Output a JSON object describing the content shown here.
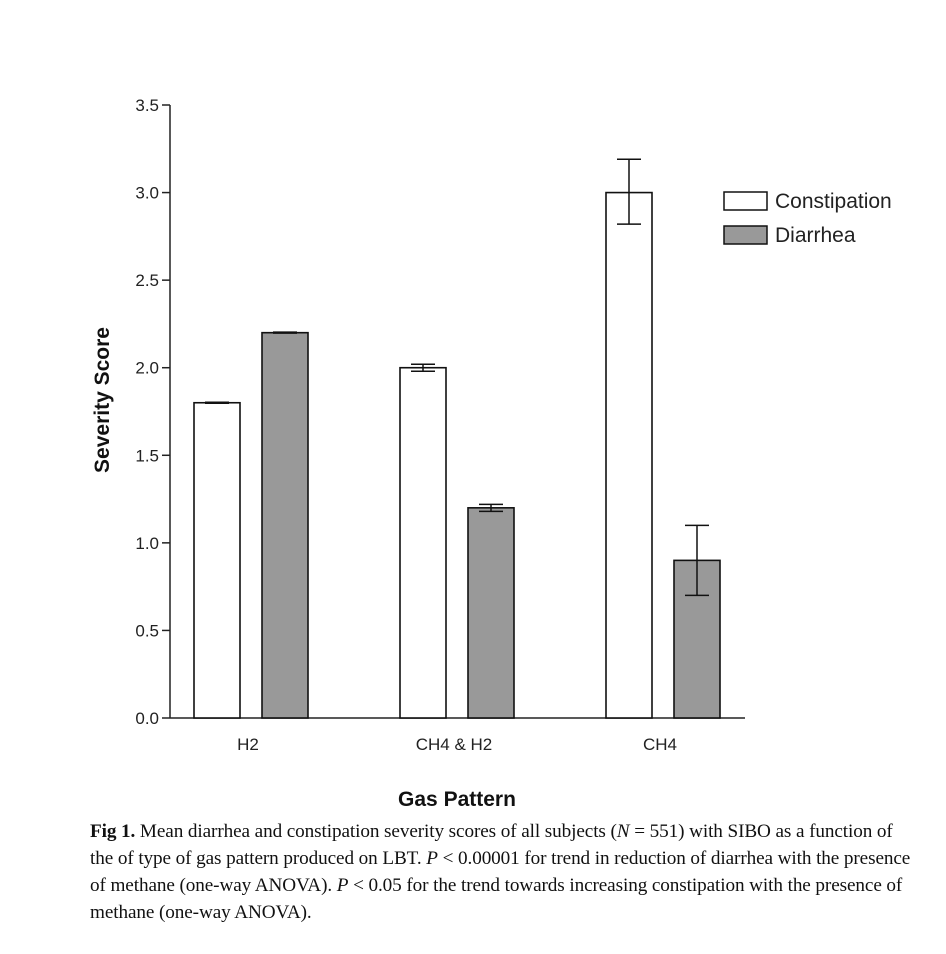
{
  "chart_data": {
    "type": "bar",
    "title": "",
    "xlabel": "Gas Pattern",
    "ylabel": "Severity Score",
    "ylim": [
      0,
      3.5
    ],
    "yticks": [
      "0.0",
      "0.5",
      "1.0",
      "1.5",
      "2.0",
      "2.5",
      "3.0",
      "3.5"
    ],
    "categories": [
      "H2",
      "CH4 & H2",
      "CH4"
    ],
    "series": [
      {
        "name": "Constipation",
        "color": "#ffffff",
        "values": [
          1.8,
          2.0,
          3.0
        ],
        "error_low": [
          0.0,
          0.02,
          0.18
        ],
        "error_high": [
          0.0,
          0.02,
          0.19
        ]
      },
      {
        "name": "Diarrhea",
        "color": "#999999",
        "values": [
          2.2,
          1.2,
          0.9
        ],
        "error_low": [
          0.0,
          0.02,
          0.2
        ],
        "error_high": [
          0.0,
          0.02,
          0.2
        ]
      }
    ],
    "legend_position": "top-right",
    "grid": false
  },
  "caption": {
    "label": "Fig 1.",
    "t1": " Mean diarrhea and constipation severity scores of all subjects (",
    "n": "N",
    "t2": " = 551) with SIBO as a function of the of type of gas pattern produced on LBT. ",
    "p1": "P",
    "t3": " < 0.00001 for trend in reduction of diarrhea with the presence of methane (one-way ANOVA). ",
    "p2": "P",
    "t4": " < 0.05 for the trend towards increasing constipation with the presence of methane (one-way ANOVA)."
  }
}
